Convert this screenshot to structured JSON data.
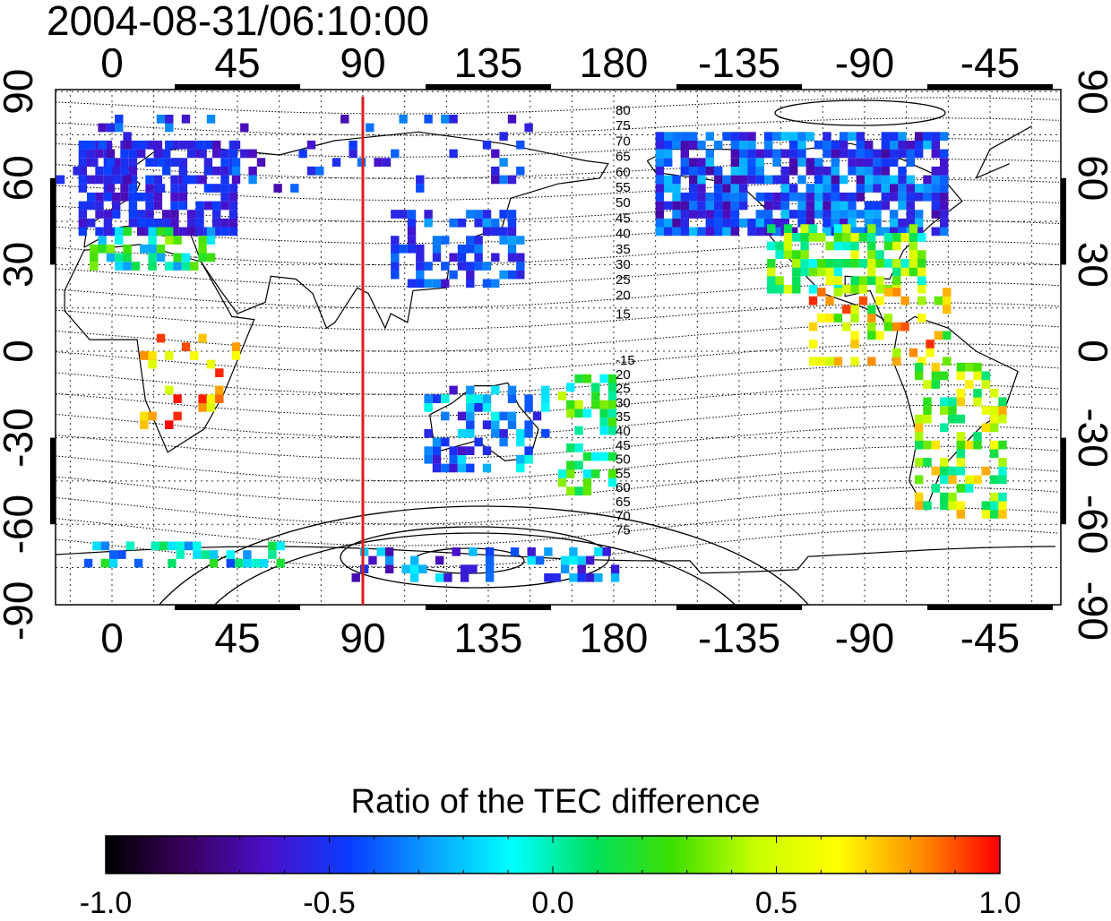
{
  "title": "2004-08-31/06:10:00",
  "map": {
    "lon_ticks": [
      "0",
      "45",
      "90",
      "135",
      "180",
      "-135",
      "-90",
      "-45"
    ],
    "lat_ticks": [
      "90",
      "60",
      "30",
      "0",
      "-30",
      "-60",
      "-90"
    ],
    "gridlines": "dotted",
    "highlight_meridian_lon": 90,
    "highlight_color": "#dd1c1c",
    "contour_labels_north": [
      "80",
      "75",
      "70",
      "65",
      "60",
      "55",
      "50",
      "45",
      "40",
      "35",
      "30",
      "25",
      "20",
      "15"
    ],
    "contour_labels_south": [
      "-15",
      "20",
      "25",
      "30",
      "35",
      "40",
      "45",
      "50",
      "55",
      "60",
      "65",
      "70",
      "75"
    ]
  },
  "colorbar": {
    "title": "Ratio of the TEC difference",
    "min": -1.0,
    "max": 1.0,
    "tick_labels": [
      "-1.0",
      "-0.5",
      "0.0",
      "0.5",
      "1.0"
    ],
    "colors": [
      "#000000",
      "#3a0060",
      "#4a10c8",
      "#0a3cff",
      "#0aa0ff",
      "#00ffff",
      "#00e060",
      "#40e000",
      "#c8ff00",
      "#ffff00",
      "#ff9000",
      "#ff0000"
    ]
  }
}
